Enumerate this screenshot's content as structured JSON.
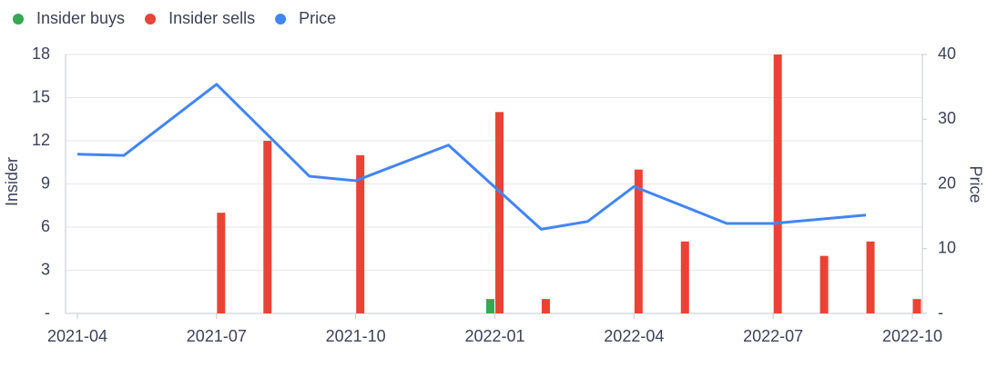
{
  "chart_data": {
    "type": "bar",
    "legend": "top-left",
    "y_label": "Insider",
    "y2_label": "Price",
    "xlim": [
      "2021-04",
      "2022-10"
    ],
    "xticks": [
      "2021-04",
      "2021-07",
      "2021-10",
      "2022-01",
      "2022-04",
      "2022-07",
      "2022-10"
    ],
    "ylim": [
      0,
      18
    ],
    "yticks": [
      {
        "value": 0,
        "label": "-"
      },
      3,
      6,
      9,
      12,
      15,
      18
    ],
    "y2lim": [
      0,
      40
    ],
    "y2ticks": [
      {
        "value": 0,
        "label": "-"
      },
      10,
      20,
      30,
      40
    ],
    "grid": true,
    "series": [
      {
        "name": "Insider buys",
        "color": "#34a853",
        "type": "bar",
        "x": [
          "2022-01"
        ],
        "values": [
          1
        ]
      },
      {
        "name": "Insider sells",
        "color": "#ea4335",
        "type": "bar",
        "x": [
          "2021-07",
          "2021-08",
          "2021-10",
          "2022-01",
          "2022-02",
          "2022-04",
          "2022-05",
          "2022-07",
          "2022-08",
          "2022-09",
          "2022-10"
        ],
        "values": [
          7,
          12,
          11,
          14,
          1,
          10,
          5,
          18,
          4,
          5,
          1
        ]
      },
      {
        "name": "Price",
        "color": "#4285f4",
        "type": "line",
        "axis": "y2",
        "x": [
          "2021-04",
          "2021-05",
          "2021-07",
          "2021-09",
          "2021-10",
          "2021-12",
          "2022-02",
          "2022-03",
          "2022-04",
          "2022-06",
          "2022-07",
          "2022-09"
        ],
        "values": [
          24.6,
          24.4,
          35.4,
          21.2,
          20.5,
          26.0,
          13.0,
          14.2,
          19.6,
          13.9,
          13.9,
          15.2
        ]
      }
    ]
  }
}
